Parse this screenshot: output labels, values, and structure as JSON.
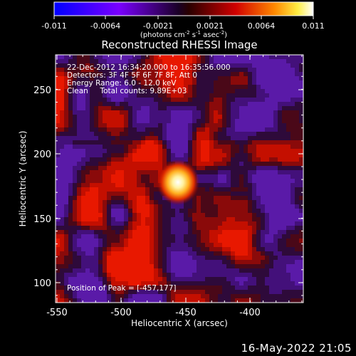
{
  "colorbar": {
    "tick_labels": [
      "-0.011",
      "-0.0064",
      "-0.0021",
      "0.0021",
      "0.0064",
      "0.011"
    ],
    "unit_label": "(photons cm",
    "unit_sup1": "-2",
    "unit_mid": " s",
    "unit_sup2": "-1",
    "unit_tail": " asec",
    "unit_sup3": "-2",
    "unit_close": ")"
  },
  "image": {
    "title": "Reconstructed RHESSI Image",
    "info_lines": [
      "22-Dec-2012 16:34:20.000 to 16:35:56.000",
      "Detectors: 3F 4F 5F 6F 7F 8F, Att 0",
      "Energy Range: 6.0 - 12.0 keV",
      "Clean     Total counts: 9.89E+03"
    ],
    "peak_text": "Position of Peak = [-457,177]",
    "peak_position": [
      -457,
      177
    ],
    "x_label": "Heliocentric X (arcsec)",
    "y_label": "Heliocentric Y (arcsec)",
    "x_ticks": [
      "-550",
      "-500",
      "-450",
      "-400"
    ],
    "y_ticks": [
      "100",
      "150",
      "200",
      "250"
    ],
    "x_range": [
      -558,
      -365
    ],
    "y_range": [
      87,
      280
    ]
  },
  "footer": {
    "timestamp": "16-May-2022 21:05"
  }
}
